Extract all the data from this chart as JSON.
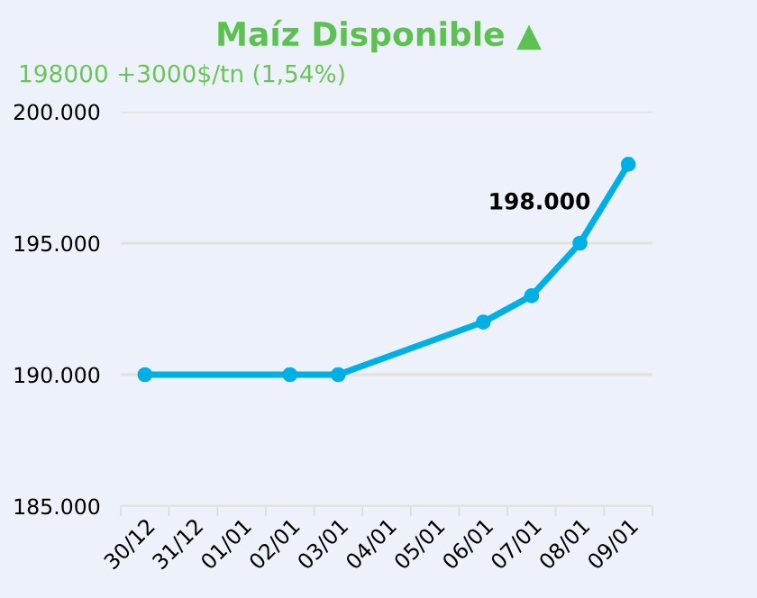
{
  "chart_data": {
    "type": "line",
    "title": "Maíz Disponible ▲",
    "subtitle": "198000 +3000$/tn (1,54%)",
    "categories": [
      "30/12",
      "31/12",
      "01/01",
      "02/01",
      "03/01",
      "04/01",
      "05/01",
      "06/01",
      "07/01",
      "08/01",
      "09/01"
    ],
    "series": [
      {
        "color": "#00b0e4",
        "values": [
          190000,
          null,
          null,
          190000,
          190000,
          null,
          null,
          192000,
          193000,
          195000,
          198000
        ],
        "value_labels": [
          null,
          null,
          null,
          null,
          null,
          null,
          null,
          null,
          null,
          null,
          "198.000"
        ]
      }
    ],
    "ylim": [
      185000,
      200000
    ],
    "yticks": [
      {
        "value": 185000,
        "label": "185.000"
      },
      {
        "value": 190000,
        "label": "190.000"
      },
      {
        "value": 195000,
        "label": "195.000"
      },
      {
        "value": 200000,
        "label": "200.000"
      }
    ],
    "grid": "y",
    "marker": "circle",
    "line_style": "solid",
    "legend": false
  }
}
